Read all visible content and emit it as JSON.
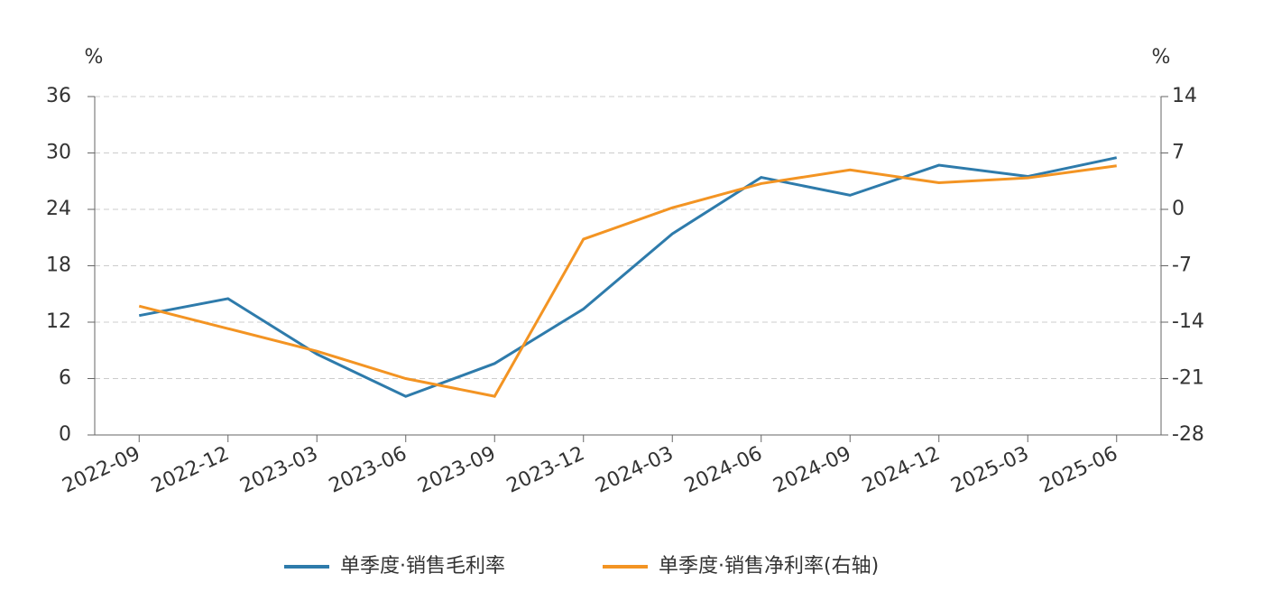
{
  "chart_data": {
    "type": "line",
    "y_unit": "%",
    "y2_unit": "%",
    "categories": [
      "2022-09",
      "2022-12",
      "2023-03",
      "2023-06",
      "2023-09",
      "2023-12",
      "2024-03",
      "2024-06",
      "2024-09",
      "2024-12",
      "2025-03",
      "2025-06"
    ],
    "series": [
      {
        "name": "单季度·销售毛利率",
        "color": "#2e7bab",
        "values": [
          12.7,
          14.5,
          8.6,
          4.1,
          7.6,
          13.4,
          21.4,
          27.4,
          25.5,
          28.7,
          27.5,
          29.5
        ]
      },
      {
        "name": "单季度·销售净利率(右轴)",
        "color": "#f39423",
        "axis": "y2",
        "values": [
          -12.0,
          -14.8,
          -17.6,
          -21.0,
          -23.2,
          -3.7,
          0.2,
          3.2,
          4.9,
          3.3,
          3.9,
          5.4
        ]
      }
    ],
    "ylim": [
      0,
      36
    ],
    "yticks": [
      0,
      6,
      12,
      18,
      24,
      30,
      36
    ],
    "y2lim": [
      -28,
      14
    ],
    "y2ticks": [
      -28,
      -21,
      -14,
      -7,
      0,
      7,
      14
    ],
    "grid": true
  }
}
